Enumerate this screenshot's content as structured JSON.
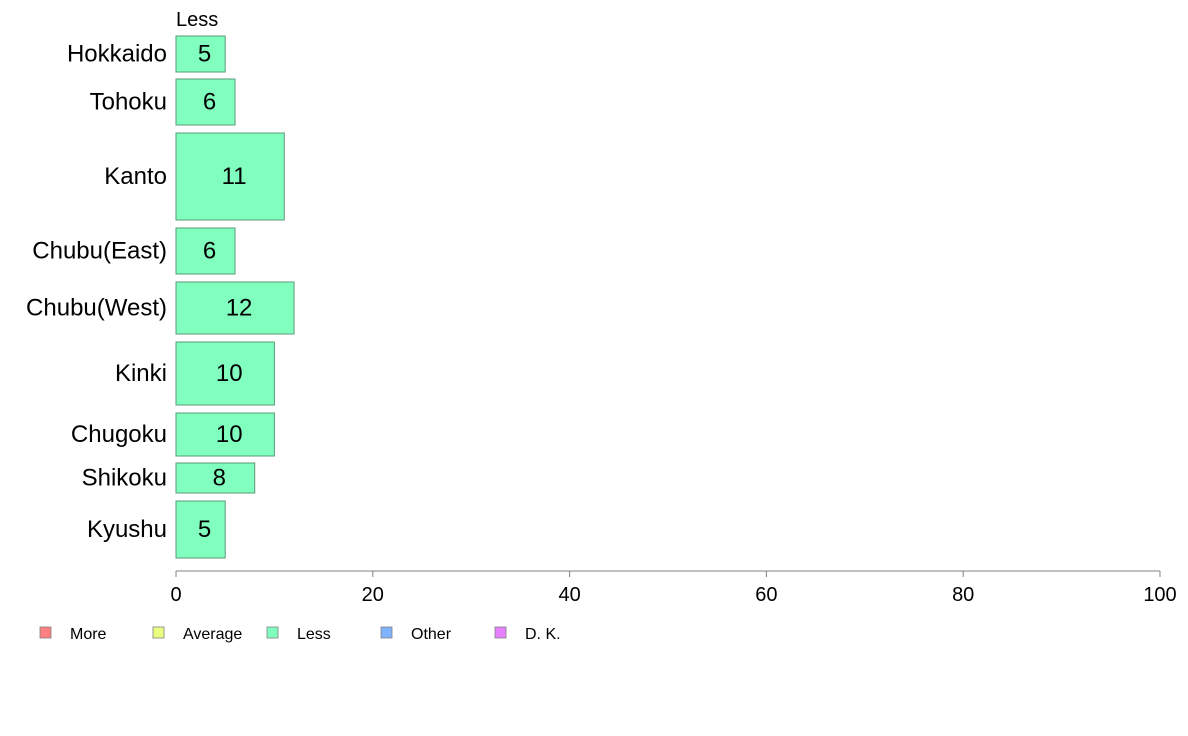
{
  "chart_data": {
    "type": "bar",
    "orientation": "horizontal",
    "stacked": true,
    "categories": [
      "Hokkaido",
      "Tohoku",
      "Kanto",
      "Chubu(East)",
      "Chubu(West)",
      "Kinki",
      "Chugoku",
      "Shikoku",
      "Kyushu"
    ],
    "series": [
      {
        "name": "More",
        "color": "#ff8080",
        "values": [
          null,
          null,
          null,
          null,
          null,
          null,
          null,
          null,
          null
        ]
      },
      {
        "name": "Average",
        "color": "#e8ff80",
        "values": [
          null,
          null,
          null,
          null,
          null,
          null,
          null,
          null,
          null
        ]
      },
      {
        "name": "Less",
        "color": "#80ffbf",
        "values": [
          5,
          6,
          11,
          6,
          12,
          10,
          10,
          8,
          5
        ]
      },
      {
        "name": "Other",
        "color": "#80b3ff",
        "values": [
          null,
          null,
          null,
          null,
          null,
          null,
          null,
          null,
          null
        ]
      },
      {
        "name": "D. K.",
        "color": "#e680ff",
        "values": [
          null,
          null,
          null,
          null,
          null,
          null,
          null,
          null,
          null
        ]
      }
    ],
    "bar_value_labels": [
      "5",
      "6",
      "11",
      "6",
      "12",
      "10",
      "10",
      "8",
      "5"
    ],
    "column_header": "Less",
    "xlim": [
      0,
      100
    ],
    "xticks": [
      0,
      20,
      40,
      60,
      80,
      100
    ],
    "tick_labels": [
      "0",
      "20",
      "40",
      "60",
      "80",
      "100"
    ],
    "grid": false,
    "legend_position": "bottom-left",
    "legend_labels": [
      "More",
      "Average",
      "Less",
      "Other",
      "D. K."
    ],
    "bar_edge_color": "#5a9a78",
    "axis_color": "#808080"
  }
}
